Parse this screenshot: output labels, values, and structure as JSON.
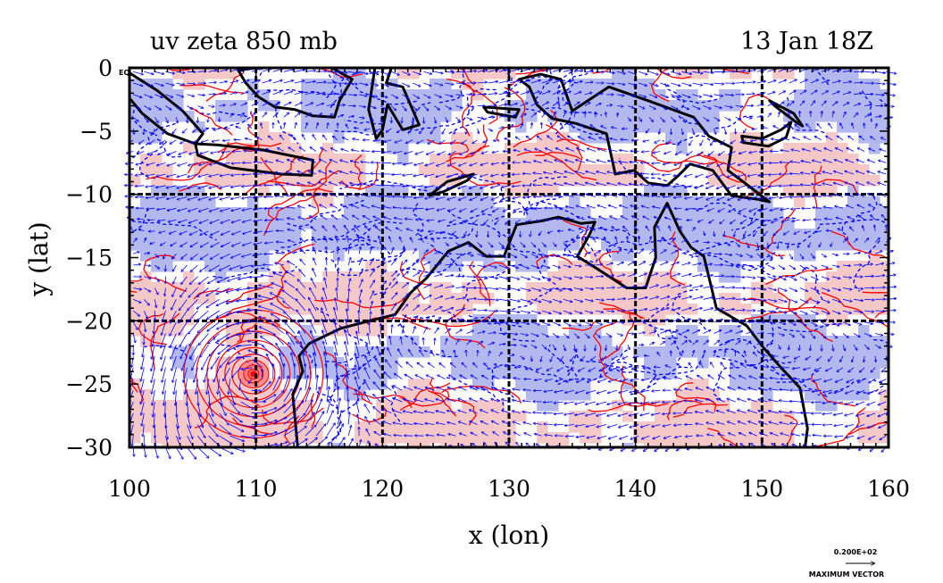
{
  "title_left": "uv zeta 850 mb",
  "title_right": "13 Jan 18Z",
  "eq_label": "EQ",
  "x_axis": {
    "label": "x (lon)",
    "range": [
      100,
      160
    ],
    "ticks": [
      {
        "value": 100,
        "label": "100"
      },
      {
        "value": 110,
        "label": "110"
      },
      {
        "value": 120,
        "label": "120"
      },
      {
        "value": 130,
        "label": "130"
      },
      {
        "value": 140,
        "label": "140"
      },
      {
        "value": 150,
        "label": "150"
      },
      {
        "value": 160,
        "label": "160"
      }
    ]
  },
  "y_axis": {
    "label": "y (lat)",
    "range": [
      -30,
      0
    ],
    "ticks": [
      {
        "value": 0,
        "label": "0"
      },
      {
        "value": -5,
        "label": "−5"
      },
      {
        "value": -10,
        "label": "−10"
      },
      {
        "value": -15,
        "label": "−15"
      },
      {
        "value": -20,
        "label": "−20"
      },
      {
        "value": -25,
        "label": "−25"
      },
      {
        "value": -30,
        "label": "−30"
      }
    ]
  },
  "grid": {
    "lon_lines": [
      110,
      120,
      130,
      140,
      150
    ],
    "lat_lines": [
      -10,
      -20
    ]
  },
  "vector_key": {
    "value_label": "0.200E+02",
    "caption": "MAXIMUM VECTOR"
  },
  "colors": {
    "positive_fill": "#f5c8c8",
    "negative_fill": "#b3b9ee",
    "positive_contour": "#ff0000",
    "negative_contour": "#0000ff",
    "vectors": "#0000ff",
    "coast": "#000000"
  },
  "features": {
    "cyclone_center": {
      "lon": 109.8,
      "lat": -24.2
    },
    "landmasses": [
      {
        "name": "Sumatra",
        "coords": [
          [
            100,
            -0.4
          ],
          [
            102.2,
            -1.8
          ],
          [
            104.2,
            -3.4
          ],
          [
            105.8,
            -5.2
          ],
          [
            105.2,
            -6
          ],
          [
            103,
            -5.2
          ],
          [
            101,
            -3.6
          ],
          [
            100,
            -2.4
          ]
        ]
      },
      {
        "name": "Java",
        "coords": [
          [
            105.2,
            -6
          ],
          [
            107,
            -6.1
          ],
          [
            110.6,
            -6.5
          ],
          [
            114.5,
            -7.3
          ],
          [
            114.4,
            -8.5
          ],
          [
            112,
            -8.4
          ],
          [
            108,
            -7.9
          ],
          [
            105.4,
            -6.9
          ]
        ]
      },
      {
        "name": "Borneo",
        "coords": [
          [
            108.6,
            -0.2
          ],
          [
            110,
            0
          ],
          [
            116,
            0
          ],
          [
            117.6,
            -0.9
          ],
          [
            116.6,
            -2.6
          ],
          [
            116.2,
            -3.9
          ],
          [
            114.5,
            -3.8
          ],
          [
            113.1,
            -3.3
          ],
          [
            111.5,
            -3.1
          ],
          [
            110.2,
            -2.3
          ],
          [
            109.2,
            -1.2
          ]
        ]
      },
      {
        "name": "Sulawesi",
        "coords": [
          [
            119.4,
            0
          ],
          [
            120.7,
            0
          ],
          [
            120.3,
            -1.2
          ],
          [
            121.6,
            -1.5
          ],
          [
            122.9,
            -4.5
          ],
          [
            121.6,
            -4.9
          ],
          [
            120.4,
            -2.9
          ],
          [
            120,
            -4.9
          ],
          [
            119.5,
            -5.6
          ],
          [
            118.9,
            -3.3
          ]
        ]
      },
      {
        "name": "Timor",
        "coords": [
          [
            123.7,
            -10.1
          ],
          [
            125.1,
            -9
          ],
          [
            127.2,
            -8.4
          ],
          [
            126.7,
            -8.9
          ],
          [
            124.8,
            -9.8
          ]
        ]
      },
      {
        "name": "Seram",
        "coords": [
          [
            128,
            -3.1
          ],
          [
            130.8,
            -3.3
          ],
          [
            130.5,
            -3.9
          ],
          [
            128.3,
            -3.5
          ]
        ]
      },
      {
        "name": "New Guinea",
        "coords": [
          [
            130.8,
            -0.9
          ],
          [
            132.5,
            -0.5
          ],
          [
            134.1,
            -0.9
          ],
          [
            135,
            -3.4
          ],
          [
            137.9,
            -1.5
          ],
          [
            141,
            -2.6
          ],
          [
            144.6,
            -3.9
          ],
          [
            145.8,
            -5.4
          ],
          [
            147.6,
            -6.3
          ],
          [
            147.3,
            -8.1
          ],
          [
            148.5,
            -9
          ],
          [
            150.6,
            -10.6
          ],
          [
            149.7,
            -10.4
          ],
          [
            147.6,
            -10.1
          ],
          [
            146.1,
            -8.1
          ],
          [
            144.3,
            -7.6
          ],
          [
            143.3,
            -8.6
          ],
          [
            142.5,
            -9.3
          ],
          [
            141,
            -9.1
          ],
          [
            139.9,
            -8.1
          ],
          [
            138.4,
            -8.4
          ],
          [
            137.7,
            -5.2
          ],
          [
            135.3,
            -4.4
          ],
          [
            133.4,
            -4
          ],
          [
            132.2,
            -2.9
          ],
          [
            131.6,
            -1.5
          ]
        ]
      },
      {
        "name": "New Britain",
        "coords": [
          [
            148.4,
            -5.4
          ],
          [
            150,
            -5.6
          ],
          [
            151.5,
            -4.9
          ],
          [
            152.3,
            -4.3
          ],
          [
            151.9,
            -5.5
          ],
          [
            150.5,
            -6.2
          ],
          [
            148.5,
            -5.9
          ]
        ]
      },
      {
        "name": "New Ireland",
        "coords": [
          [
            150.6,
            -2.6
          ],
          [
            152.5,
            -3.6
          ],
          [
            153.2,
            -4.6
          ],
          [
            152.7,
            -4.3
          ],
          [
            151,
            -3
          ]
        ]
      },
      {
        "name": "Australia",
        "coords": [
          [
            113.3,
            -30
          ],
          [
            112.9,
            -25.8
          ],
          [
            113.7,
            -24
          ],
          [
            113.4,
            -22.8
          ],
          [
            114.2,
            -21.8
          ],
          [
            116.7,
            -20.6
          ],
          [
            119,
            -20
          ],
          [
            121,
            -19.5
          ],
          [
            122.2,
            -17.8
          ],
          [
            123.5,
            -16.6
          ],
          [
            125.2,
            -14.5
          ],
          [
            126.8,
            -13.8
          ],
          [
            128.2,
            -14.9
          ],
          [
            129.6,
            -14.9
          ],
          [
            130.6,
            -12.4
          ],
          [
            132.6,
            -12.1
          ],
          [
            133.9,
            -11.8
          ],
          [
            135.7,
            -12.3
          ],
          [
            136.8,
            -12.2
          ],
          [
            136.3,
            -13.3
          ],
          [
            135.4,
            -14.9
          ],
          [
            137,
            -15.9
          ],
          [
            139.3,
            -17.4
          ],
          [
            140.8,
            -17.4
          ],
          [
            141.6,
            -15
          ],
          [
            141.5,
            -12.6
          ],
          [
            142.5,
            -10.7
          ],
          [
            143.5,
            -12.9
          ],
          [
            144.4,
            -14.2
          ],
          [
            145.4,
            -14.9
          ],
          [
            146.4,
            -19
          ],
          [
            148.8,
            -20.4
          ],
          [
            150.1,
            -22.1
          ],
          [
            151.4,
            -23.6
          ],
          [
            153,
            -25.3
          ],
          [
            153.6,
            -28.5
          ],
          [
            153.4,
            -30
          ]
        ]
      }
    ]
  }
}
